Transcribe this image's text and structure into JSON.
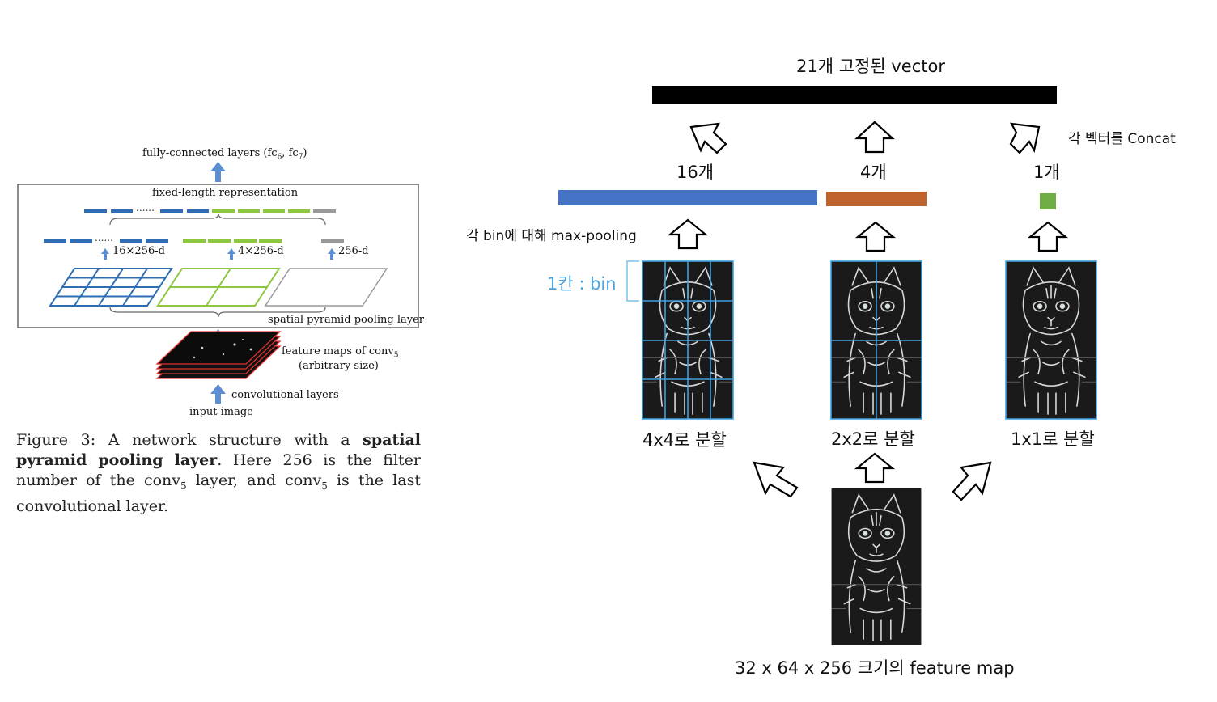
{
  "left_figure": {
    "fc_label": "fully-connected layers (fc",
    "fc_sub6": "6",
    "fc_mid": ", fc",
    "fc_sub7": "7",
    "fc_end": ")",
    "fixed_length": "fixed-length representation",
    "dots1": "......",
    "dots2": "......",
    "dim16": "16×256-d",
    "dim4": "4×256-d",
    "dim1": "256-d",
    "spp_layer": "spatial pyramid pooling layer",
    "feature_maps_1": "feature maps of conv",
    "feature_maps_sub": "5",
    "feature_maps_2": "(arbitrary size)",
    "conv_layers": "convolutional layers",
    "input_image": "input image",
    "colors": {
      "blue": "#2e6db4",
      "green": "#8dc63f",
      "gray": "#999999",
      "red": "#e03030"
    }
  },
  "caption": {
    "p1": "Figure 3: A network structure with a ",
    "b1": "spatial pyramid pooling layer",
    "p2": ". Here 256 is the filter number of the conv",
    "sub1": "5",
    "p3": " layer, and conv",
    "sub2": "5",
    "p4": " is the last convolutional layer."
  },
  "right_figure": {
    "vector_title": "21개 고정된 vector",
    "concat_label": "각 벡터를 Concat",
    "count16": "16개",
    "count4": "4개",
    "count1": "1개",
    "maxpool_label": "각 bin에 대해 max-pooling",
    "bin_label": "1칸 : bin",
    "split4": "4x4로 분할",
    "split2": "2x2로 분할",
    "split1": "1x1로 분할",
    "feature_map_label": "32 x 64 x 256 크기의 feature map",
    "colors": {
      "bar16": "#4472c4",
      "bar4": "#c0622b",
      "bar1": "#70ad47",
      "grid": "#3fa0e0",
      "vector": "#000000"
    }
  }
}
